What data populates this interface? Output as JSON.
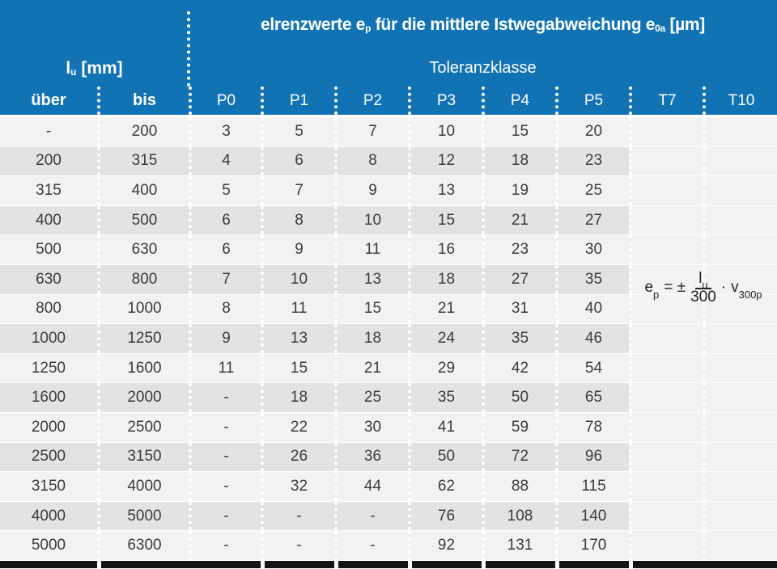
{
  "header": {
    "title": {
      "pre": "elrenzwerte e",
      "sub1": "p",
      "mid": " für die mittlere Istwegabweichung e",
      "sub2": "0a",
      "post": " [µm]"
    },
    "row_label": {
      "main": "l",
      "sub": "u",
      "unit": " [mm]"
    },
    "group_label": "Toleranzklasse",
    "col_uber": "über",
    "col_bis": "bis",
    "tolerance_classes": [
      "P0",
      "P1",
      "P2",
      "P3",
      "P4",
      "P5",
      "T7",
      "T10"
    ]
  },
  "table": {
    "rows": [
      {
        "uber": "-",
        "bis": "200",
        "values": [
          "3",
          "5",
          "7",
          "10",
          "15",
          "20"
        ]
      },
      {
        "uber": "200",
        "bis": "315",
        "values": [
          "4",
          "6",
          "8",
          "12",
          "18",
          "23"
        ]
      },
      {
        "uber": "315",
        "bis": "400",
        "values": [
          "5",
          "7",
          "9",
          "13",
          "19",
          "25"
        ]
      },
      {
        "uber": "400",
        "bis": "500",
        "values": [
          "6",
          "8",
          "10",
          "15",
          "21",
          "27"
        ]
      },
      {
        "uber": "500",
        "bis": "630",
        "values": [
          "6",
          "9",
          "11",
          "16",
          "23",
          "30"
        ]
      },
      {
        "uber": "630",
        "bis": "800",
        "values": [
          "7",
          "10",
          "13",
          "18",
          "27",
          "35"
        ]
      },
      {
        "uber": "800",
        "bis": "1000",
        "values": [
          "8",
          "11",
          "15",
          "21",
          "31",
          "40"
        ]
      },
      {
        "uber": "1000",
        "bis": "1250",
        "values": [
          "9",
          "13",
          "18",
          "24",
          "35",
          "46"
        ]
      },
      {
        "uber": "1250",
        "bis": "1600",
        "values": [
          "11",
          "15",
          "21",
          "29",
          "42",
          "54"
        ]
      },
      {
        "uber": "1600",
        "bis": "2000",
        "values": [
          "-",
          "18",
          "25",
          "35",
          "50",
          "65"
        ]
      },
      {
        "uber": "2000",
        "bis": "2500",
        "values": [
          "-",
          "22",
          "30",
          "41",
          "59",
          "78"
        ]
      },
      {
        "uber": "2500",
        "bis": "3150",
        "values": [
          "-",
          "26",
          "36",
          "50",
          "72",
          "96"
        ]
      },
      {
        "uber": "3150",
        "bis": "4000",
        "values": [
          "-",
          "32",
          "44",
          "62",
          "88",
          "115"
        ]
      },
      {
        "uber": "4000",
        "bis": "5000",
        "values": [
          "-",
          "-",
          "-",
          "76",
          "108",
          "140"
        ]
      },
      {
        "uber": "5000",
        "bis": "6300",
        "values": [
          "-",
          "-",
          "-",
          "92",
          "131",
          "170"
        ]
      }
    ]
  },
  "formula": {
    "lhs_base": "e",
    "lhs_sub": "p",
    "relation": "= ±",
    "num_base": "l",
    "num_sub": "u",
    "den": "300",
    "mult": "·",
    "v_base": "v",
    "v_sub": "300p"
  },
  "colors": {
    "header_blue": "#1273b4",
    "row_light": "#f2f2f2",
    "row_dark": "#e3e3e3",
    "footer_bar": "#141414",
    "body_text": "#3c3c3c"
  }
}
